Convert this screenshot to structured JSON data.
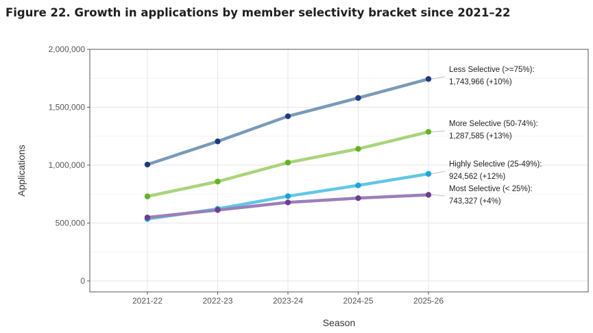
{
  "figure_title": "Figure 22. Growth in applications by member selectivity bracket since 2021–22",
  "chart_data": {
    "type": "line",
    "title": "Figure 22. Growth in applications by member selectivity bracket since 2021–22",
    "xlabel": "Season",
    "ylabel": "Applications",
    "categories": [
      "2021-22",
      "2022-23",
      "2023-24",
      "2024-25",
      "2025-26"
    ],
    "ylim": [
      0,
      2000000
    ],
    "yticks": [
      0,
      500000,
      1000000,
      1500000,
      2000000
    ],
    "ytick_labels": [
      "0",
      "500,000",
      "1,000,000",
      "1,500,000",
      "2,000,000"
    ],
    "grid": true,
    "series": [
      {
        "name": "Less Selective (>=75%)",
        "values": [
          1005000,
          1205000,
          1422000,
          1580000,
          1743966
        ],
        "annotation_line1": "Less Selective (>=75%):",
        "annotation_line2": "1,743,966 (+10%)",
        "line_color": "#7a9ab8",
        "point_color": "#1f3a7a"
      },
      {
        "name": "More Selective (50-74%)",
        "values": [
          730000,
          858000,
          1022000,
          1140000,
          1287585
        ],
        "annotation_line1": "More Selective (50-74%):",
        "annotation_line2": "1,287,585 (+13%)",
        "line_color": "#a8d47a",
        "point_color": "#66b025"
      },
      {
        "name": "Highly Selective (25-49%)",
        "values": [
          535000,
          622000,
          732000,
          825000,
          924562
        ],
        "annotation_line1": "Highly Selective (25-49%):",
        "annotation_line2": "924,562 (+12%)",
        "line_color": "#62c6e6",
        "point_color": "#1ca4d6"
      },
      {
        "name": "Most Selective (< 25%)",
        "values": [
          548000,
          612000,
          678000,
          715000,
          743327
        ],
        "annotation_line1": "Most Selective (< 25%):",
        "annotation_line2": "743,327 (+4%)",
        "line_color": "#9b7fb9",
        "point_color": "#6b3e8f"
      }
    ]
  }
}
